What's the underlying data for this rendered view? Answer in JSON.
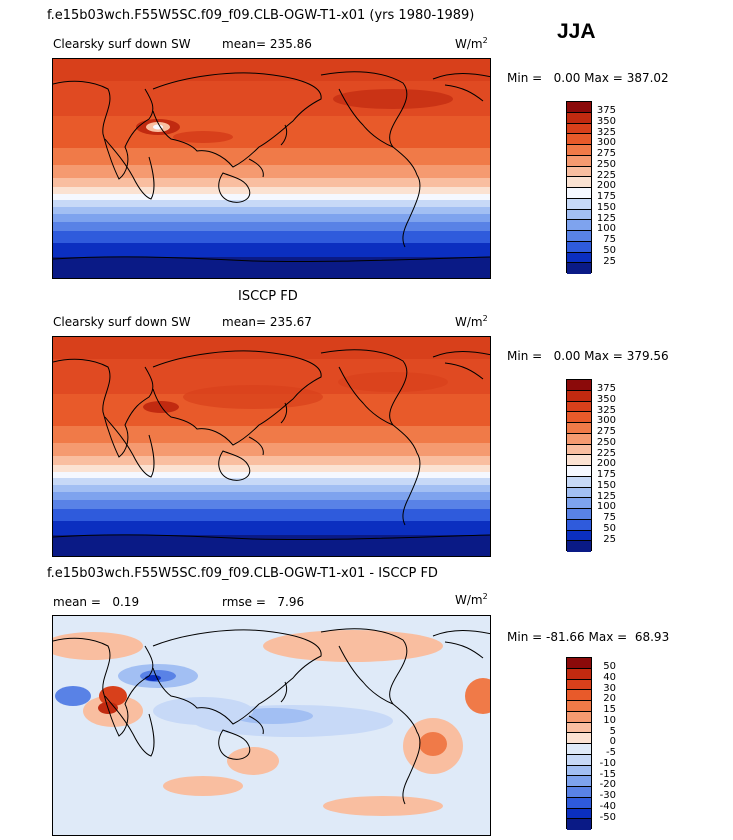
{
  "header": {
    "case_title": "f.e15b03wch.F55W5SC.f09_f09.CLB-OGW-T1-x01 (yrs 1980-1989)",
    "season": "JJA"
  },
  "chart_data": [
    {
      "type": "heatmap",
      "subtitle": "Clearsky surf down SW",
      "mean_label": "mean=",
      "mean_value": "235.86",
      "units": "W/m",
      "units_exp": "2",
      "min_label": "Min =",
      "min_value": "0.00",
      "max_label": "Max =",
      "max_value": "387.02",
      "colorbar": {
        "levels": [
          "375",
          "350",
          "325",
          "300",
          "275",
          "250",
          "225",
          "200",
          "175",
          "150",
          "125",
          "100",
          "75",
          "50",
          "25"
        ],
        "colors": [
          "#8b0a0a",
          "#c12a10",
          "#d8401b",
          "#e85a2a",
          "#f07a48",
          "#f59a70",
          "#f9bea0",
          "#fbe2d2",
          "#f5f8ff",
          "#c7d9f7",
          "#a2bff3",
          "#7ea3ee",
          "#5982e6",
          "#2f5bdc",
          "#0b2fc0",
          "#0a1a86"
        ]
      }
    },
    {
      "type": "heatmap",
      "title": "ISCCP FD",
      "subtitle": "Clearsky surf down SW",
      "mean_label": "mean=",
      "mean_value": "235.67",
      "units": "W/m",
      "units_exp": "2",
      "min_label": "Min =",
      "min_value": "0.00",
      "max_label": "Max =",
      "max_value": "379.56",
      "colorbar": {
        "levels": [
          "375",
          "350",
          "325",
          "300",
          "275",
          "250",
          "225",
          "200",
          "175",
          "150",
          "125",
          "100",
          "75",
          "50",
          "25"
        ],
        "colors": [
          "#8b0a0a",
          "#c12a10",
          "#d8401b",
          "#e85a2a",
          "#f07a48",
          "#f59a70",
          "#f9bea0",
          "#fbe2d2",
          "#f5f8ff",
          "#c7d9f7",
          "#a2bff3",
          "#7ea3ee",
          "#5982e6",
          "#2f5bdc",
          "#0b2fc0",
          "#0a1a86"
        ]
      }
    },
    {
      "type": "heatmap",
      "title": "f.e15b03wch.F55W5SC.f09_f09.CLB-OGW-T1-x01 - ISCCP FD",
      "mean_label": "mean =",
      "mean_value": "0.19",
      "rmse_label": "rmse =",
      "rmse_value": "7.96",
      "units": "W/m",
      "units_exp": "2",
      "min_label": "Min =",
      "min_value": "-81.66",
      "max_label": "Max =",
      "max_value": "68.93",
      "colorbar": {
        "levels": [
          "50",
          "40",
          "30",
          "20",
          "15",
          "10",
          "5",
          "0",
          "-5",
          "-10",
          "-15",
          "-20",
          "-30",
          "-40",
          "-50"
        ],
        "colors": [
          "#8b0a0a",
          "#c12a10",
          "#d8401b",
          "#e85a2a",
          "#f07a48",
          "#f59a70",
          "#f9bea0",
          "#fbe2d2",
          "#dfeaf8",
          "#c7d9f7",
          "#a2bff3",
          "#7ea3ee",
          "#5982e6",
          "#2f5bdc",
          "#0b2fc0",
          "#0a1a86"
        ]
      }
    }
  ]
}
